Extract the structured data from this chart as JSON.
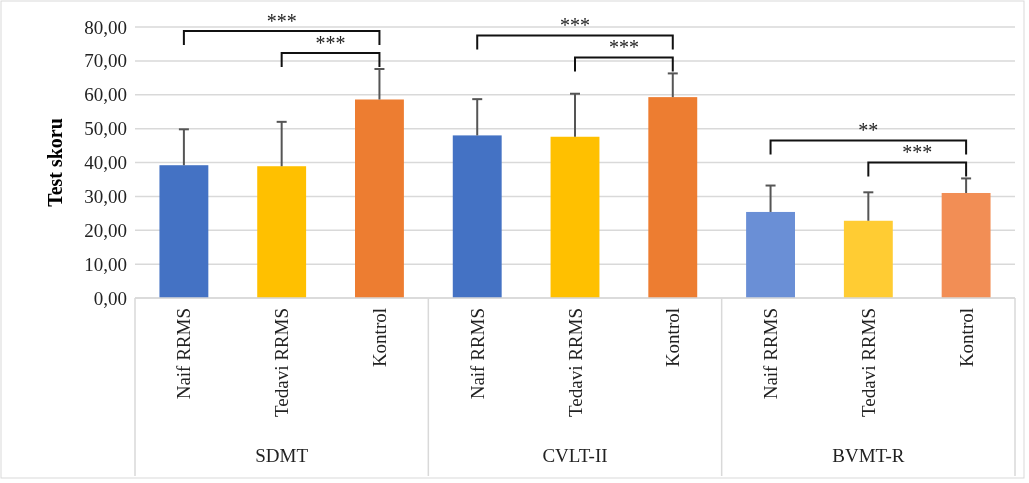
{
  "chart_data": {
    "type": "bar",
    "ylabel": "Test skoru",
    "categories": [
      "Naif RRMS",
      "Tedavi RRMS",
      "Kontrol",
      "Naif RRMS",
      "Tedavi RRMS",
      "Kontrol",
      "Naif RRMS",
      "Tedavi RRMS",
      "Kontrol"
    ],
    "values": [
      39.2,
      38.9,
      58.6,
      48.0,
      47.6,
      59.3,
      25.4,
      22.8,
      31.0
    ],
    "colors": [
      "#4472c4",
      "#ffc000",
      "#ed7d31",
      "#4472c4",
      "#ffc000",
      "#ed7d31",
      "#6a8fd6",
      "#ffcc33",
      "#f28e55"
    ],
    "errors": [
      [
        39.2,
        49.8
      ],
      [
        38.9,
        52.0
      ],
      [
        58.6,
        67.6
      ],
      [
        48.0,
        58.7
      ],
      [
        47.6,
        60.3
      ],
      [
        59.3,
        66.3
      ],
      [
        25.4,
        33.2
      ],
      [
        22.8,
        31.2
      ],
      [
        31.0,
        35.3
      ]
    ],
    "ylim": [
      0,
      80
    ],
    "yticks": [
      {
        "value": 0,
        "label": "0,00"
      },
      {
        "value": 10,
        "label": "10,00"
      },
      {
        "value": 20,
        "label": "20,00"
      },
      {
        "value": 30,
        "label": "30,00"
      },
      {
        "value": 40,
        "label": "40,00"
      },
      {
        "value": 50,
        "label": "50,00"
      },
      {
        "value": 60,
        "label": "60,00"
      },
      {
        "value": 70,
        "label": "70,00"
      },
      {
        "value": 80,
        "label": "80,00"
      }
    ],
    "grid": "y",
    "annotations": [
      "SDMT",
      "CVLT-II",
      "BVMT-R",
      "***",
      "***",
      "***",
      "***",
      "**",
      "***"
    ]
  }
}
